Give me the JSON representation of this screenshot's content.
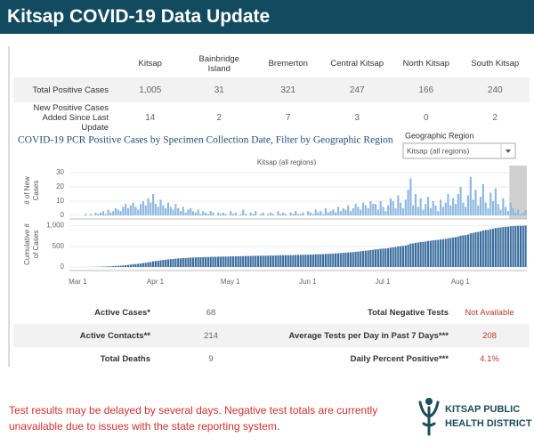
{
  "header": {
    "title": "Kitsap COVID-19 Data Update"
  },
  "table": {
    "columns": [
      "Kitsap",
      "Bainbridge Island",
      "Bremerton",
      "Central Kitsap",
      "North Kitsap",
      "South Kitsap"
    ],
    "rows": [
      {
        "label": "Total Positive Cases",
        "values": [
          "1,005",
          "31",
          "321",
          "247",
          "166",
          "240"
        ]
      },
      {
        "label": "New Positive Cases Added Since Last Update",
        "values": [
          "14",
          "2",
          "7",
          "3",
          "0",
          "2"
        ]
      }
    ]
  },
  "filter": {
    "label": "Geographic Region",
    "selected": "Kitsap (all regions)"
  },
  "chart_data": {
    "type": "bar",
    "title": "COVID-19 PCR Positive Cases by Specimen Collection Date, Filter by Geographic Region",
    "subtitle": "Kitsap (all regions)",
    "categories": [
      "Mar 1",
      null,
      null,
      null,
      null,
      null,
      null,
      null,
      null,
      null,
      null,
      null,
      null,
      null,
      null,
      null,
      null,
      null,
      null,
      null,
      null,
      null,
      null,
      null,
      null,
      null,
      null,
      null,
      null,
      null,
      null,
      "Apr 1",
      null,
      null,
      null,
      null,
      null,
      null,
      null,
      null,
      null,
      null,
      null,
      null,
      null,
      null,
      null,
      null,
      null,
      null,
      null,
      null,
      null,
      null,
      null,
      null,
      null,
      null,
      null,
      null,
      null,
      "May 1",
      null,
      null,
      null,
      null,
      null,
      null,
      null,
      null,
      null,
      null,
      null,
      null,
      null,
      null,
      null,
      null,
      null,
      null,
      null,
      null,
      null,
      null,
      null,
      null,
      null,
      null,
      null,
      null,
      null,
      null,
      "Jun 1",
      null,
      null,
      null,
      null,
      null,
      null,
      null,
      null,
      null,
      null,
      null,
      null,
      null,
      null,
      null,
      null,
      null,
      null,
      null,
      null,
      null,
      null,
      null,
      null,
      null,
      null,
      null,
      null,
      null,
      "Jul 1",
      null,
      null,
      null,
      null,
      null,
      null,
      null,
      null,
      null,
      null,
      null,
      null,
      null,
      null,
      null,
      null,
      null,
      null,
      null,
      null,
      null,
      null,
      null,
      null,
      null,
      null,
      null,
      null,
      null,
      null,
      "Aug 1",
      null,
      null,
      null,
      null,
      null,
      null,
      null,
      null,
      null,
      null,
      null,
      null,
      null,
      null,
      null,
      null,
      null,
      null,
      null,
      null,
      null,
      null,
      null,
      null,
      null,
      null,
      null,
      null,
      null
    ],
    "panels": [
      {
        "ylabel": [
          "# of New",
          "Cases"
        ],
        "color": "#8cb8e2",
        "highlight_color": "#d0d0d0",
        "ylim": [
          0,
          35
        ],
        "yticks": [
          0,
          10,
          20,
          30
        ],
        "values": [
          0,
          0,
          0,
          0,
          0,
          0,
          1,
          0,
          1,
          0,
          2,
          1,
          2,
          3,
          1,
          4,
          2,
          3,
          5,
          4,
          3,
          6,
          8,
          5,
          7,
          9,
          6,
          4,
          8,
          10,
          7,
          12,
          9,
          15,
          8,
          6,
          11,
          7,
          5,
          9,
          6,
          4,
          8,
          5,
          3,
          6,
          2,
          4,
          5,
          3,
          2,
          4,
          1,
          3,
          2,
          1,
          3,
          2,
          0,
          2,
          1,
          2,
          1,
          0,
          3,
          1,
          2,
          0,
          1,
          4,
          1,
          0,
          2,
          1,
          3,
          0,
          1,
          2,
          0,
          1,
          2,
          1,
          0,
          3,
          1,
          2,
          1,
          0,
          2,
          1,
          3,
          1,
          1,
          2,
          0,
          3,
          2,
          1,
          4,
          2,
          3,
          1,
          5,
          2,
          3,
          4,
          2,
          6,
          3,
          5,
          4,
          7,
          3,
          5,
          8,
          6,
          4,
          9,
          7,
          5,
          10,
          8,
          8,
          4,
          10,
          6,
          3,
          7,
          12,
          10,
          5,
          14,
          9,
          5,
          11,
          18,
          26,
          7,
          15,
          6,
          12,
          4,
          8,
          13,
          5,
          10,
          7,
          3,
          11,
          6,
          9,
          15,
          7,
          12,
          8,
          15,
          20,
          9,
          6,
          14,
          27,
          11,
          18,
          7,
          13,
          22,
          9,
          5,
          16,
          10,
          19,
          8,
          4,
          12,
          6,
          3,
          9,
          5,
          2,
          4,
          1,
          2,
          4
        ]
      },
      {
        "ylabel": [
          "Cumulative #",
          "of Cases"
        ],
        "color": "#3a6d9e",
        "ylim": [
          0,
          1100
        ],
        "yticks": [
          0,
          500,
          {
            "value": 1000,
            "label": "1,000"
          }
        ],
        "values": [
          0,
          0,
          0,
          0,
          0,
          0,
          1,
          1,
          2,
          2,
          4,
          5,
          7,
          10,
          11,
          15,
          17,
          20,
          25,
          29,
          32,
          38,
          46,
          51,
          58,
          67,
          73,
          77,
          85,
          95,
          102,
          114,
          123,
          138,
          146,
          152,
          163,
          170,
          175,
          184,
          190,
          194,
          202,
          207,
          210,
          216,
          218,
          222,
          227,
          230,
          232,
          236,
          237,
          240,
          242,
          243,
          246,
          248,
          248,
          250,
          251,
          253,
          254,
          254,
          257,
          258,
          260,
          260,
          261,
          265,
          266,
          266,
          268,
          269,
          272,
          272,
          273,
          275,
          275,
          276,
          278,
          279,
          279,
          282,
          283,
          285,
          286,
          286,
          288,
          289,
          292,
          293,
          294,
          296,
          296,
          299,
          301,
          302,
          306,
          308,
          311,
          312,
          317,
          319,
          322,
          326,
          328,
          334,
          337,
          342,
          346,
          353,
          356,
          361,
          369,
          375,
          379,
          388,
          395,
          400,
          410,
          418,
          426,
          430,
          440,
          446,
          449,
          456,
          468,
          478,
          483,
          497,
          506,
          511,
          522,
          540,
          566,
          573,
          588,
          594,
          606,
          610,
          618,
          631,
          636,
          646,
          653,
          656,
          667,
          673,
          682,
          697,
          704,
          716,
          724,
          739,
          759,
          768,
          774,
          788,
          815,
          826,
          844,
          851,
          864,
          886,
          895,
          900,
          916,
          926,
          945,
          953,
          957,
          969,
          975,
          978,
          987,
          992,
          994,
          998,
          999,
          1001,
          1005
        ]
      }
    ]
  },
  "stats": {
    "rows": [
      {
        "left": {
          "label": "Active Cases*",
          "value": "68"
        },
        "right": {
          "label": "Total Negative Tests",
          "value": "Not Available"
        }
      },
      {
        "left": {
          "label": "Active Contacts**",
          "value": "214"
        },
        "right": {
          "label": "Average Tests per Day in Past 7 Days***",
          "value": "208"
        }
      },
      {
        "left": {
          "label": "Total Deaths",
          "value": "9"
        },
        "right": {
          "label": "Daily Percent Positive***",
          "value": "4.1%"
        }
      }
    ]
  },
  "note": "Test results may be delayed by several days. Negative test totals  are currently unavailable due to issues with the state reporting system.",
  "logo": {
    "lines": [
      "KITSAP PUBLIC",
      "HEALTH DISTRICT"
    ]
  }
}
